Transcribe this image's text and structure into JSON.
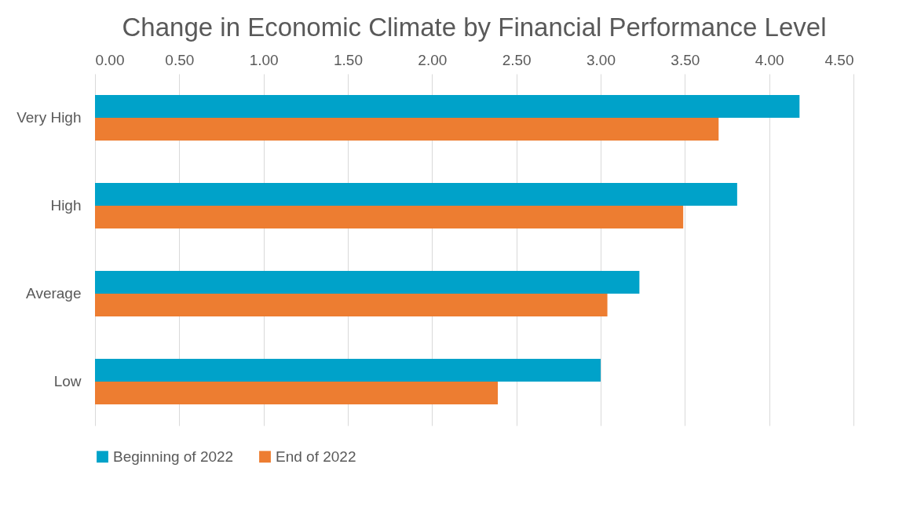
{
  "chart_data": {
    "type": "bar",
    "orientation": "horizontal",
    "title": "Change in Economic Climate by Financial Performance Level",
    "categories": [
      "Very High",
      "High",
      "Average",
      "Low"
    ],
    "series": [
      {
        "name": "Beginning of 2022",
        "color": "#00a2c9",
        "values": [
          4.18,
          3.81,
          3.23,
          3.0
        ]
      },
      {
        "name": "End of 2022",
        "color": "#ed7d31",
        "values": [
          3.7,
          3.49,
          3.04,
          2.39
        ]
      }
    ],
    "xlim": [
      0,
      4.5
    ],
    "xticks": [
      {
        "value": 0,
        "label": "0.00"
      },
      {
        "value": 0.5,
        "label": "0.50"
      },
      {
        "value": 1,
        "label": "1.00"
      },
      {
        "value": 1.5,
        "label": "1.50"
      },
      {
        "value": 2,
        "label": "2.00"
      },
      {
        "value": 2.5,
        "label": "2.50"
      },
      {
        "value": 3,
        "label": "3.00"
      },
      {
        "value": 3.5,
        "label": "3.50"
      },
      {
        "value": 4,
        "label": "4.00"
      },
      {
        "value": 4.5,
        "label": "4.50"
      }
    ],
    "grid": "x",
    "legend": "bottom"
  }
}
